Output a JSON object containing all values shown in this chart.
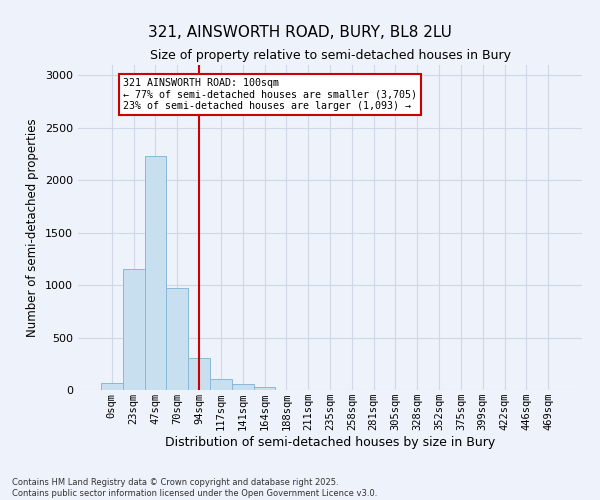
{
  "title_line1": "321, AINSWORTH ROAD, BURY, BL8 2LU",
  "title_line2": "Size of property relative to semi-detached houses in Bury",
  "xlabel": "Distribution of semi-detached houses by size in Bury",
  "ylabel": "Number of semi-detached properties",
  "categories": [
    "0sqm",
    "23sqm",
    "47sqm",
    "70sqm",
    "94sqm",
    "117sqm",
    "141sqm",
    "164sqm",
    "188sqm",
    "211sqm",
    "235sqm",
    "258sqm",
    "281sqm",
    "305sqm",
    "328sqm",
    "352sqm",
    "375sqm",
    "399sqm",
    "422sqm",
    "446sqm",
    "469sqm"
  ],
  "values": [
    70,
    1150,
    2230,
    975,
    305,
    105,
    55,
    30,
    0,
    0,
    0,
    0,
    0,
    0,
    0,
    0,
    0,
    0,
    0,
    0,
    0
  ],
  "bar_color": "#c8dff0",
  "bar_edge_color": "#8ab8d8",
  "bar_alpha": 1.0,
  "property_line_x": 4.0,
  "annotation_title": "321 AINSWORTH ROAD: 100sqm",
  "annotation_line1": "← 77% of semi-detached houses are smaller (3,705)",
  "annotation_line2": "23% of semi-detached houses are larger (1,093) →",
  "annotation_box_color": "#ffffff",
  "annotation_box_edge": "#cc0000",
  "vline_color": "#cc0000",
  "grid_color": "#d0d8e8",
  "bg_color": "#eef2fa",
  "ylim": [
    0,
    3100
  ],
  "yticks": [
    0,
    500,
    1000,
    1500,
    2000,
    2500,
    3000
  ],
  "footnote1": "Contains HM Land Registry data © Crown copyright and database right 2025.",
  "footnote2": "Contains public sector information licensed under the Open Government Licence v3.0."
}
